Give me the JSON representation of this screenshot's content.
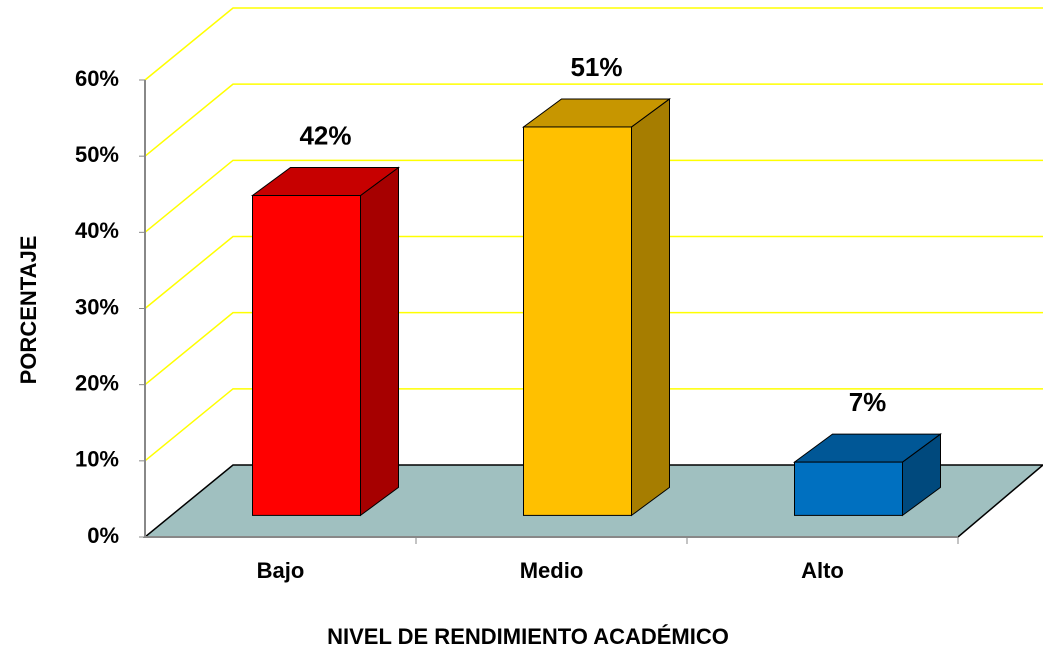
{
  "chart_data": {
    "type": "bar3d",
    "x_label": "NIVEL DE RENDIMIENTO ACADÉMICO",
    "y_label": "PORCENTAJE",
    "categories": [
      "Bajo",
      "Medio",
      "Alto"
    ],
    "values": [
      42,
      51,
      7
    ],
    "value_labels": [
      "42%",
      "51%",
      "7%"
    ],
    "colors": [
      "#ff0000",
      "#ffc000",
      "#0070c0"
    ],
    "ylim": [
      0,
      60
    ],
    "yticks": [
      {
        "value": 0,
        "label": "0%"
      },
      {
        "value": 10,
        "label": "10%"
      },
      {
        "value": 20,
        "label": "20%"
      },
      {
        "value": 30,
        "label": "30%"
      },
      {
        "value": 40,
        "label": "40%"
      },
      {
        "value": 50,
        "label": "50%"
      },
      {
        "value": 60,
        "label": "60%"
      }
    ],
    "grid": true,
    "grid_color": "#ffff00",
    "floor_color": "#a0c0c0"
  }
}
